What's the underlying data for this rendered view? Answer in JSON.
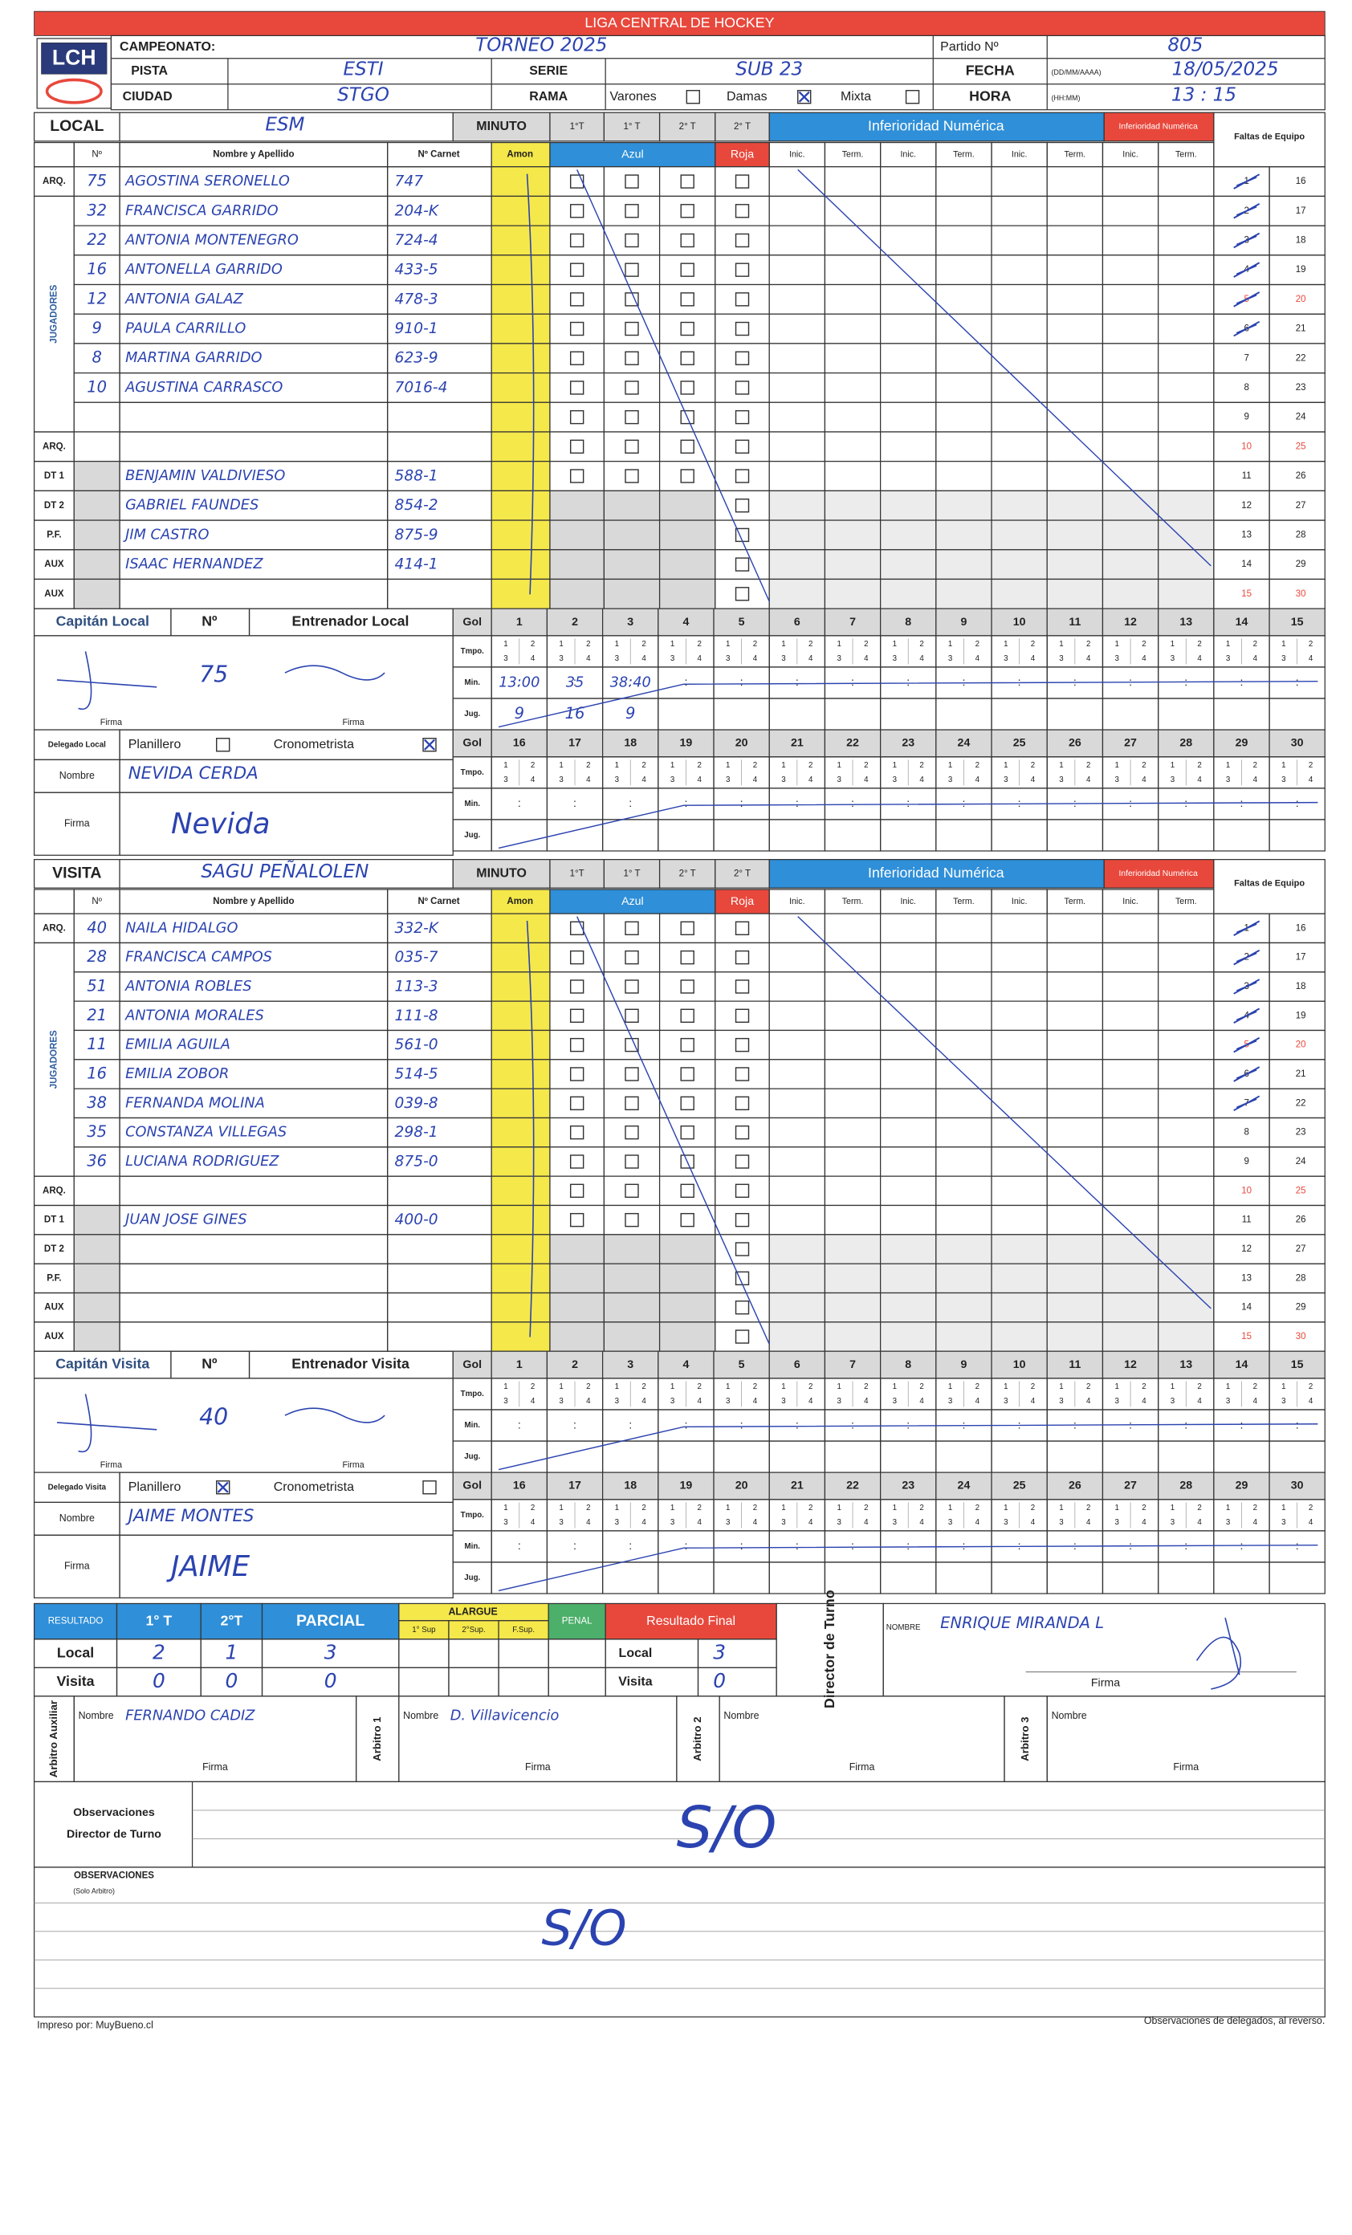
{
  "header": {
    "logo": "LCH",
    "title": "LIGA CENTRAL DE HOCKEY"
  },
  "match": {
    "campeonato_label": "CAMPEONATO:",
    "campeonato": "TORNEO 2025",
    "partido_label": "Partido Nº",
    "partido": "805",
    "pista_label": "PISTA",
    "pista": "ESTI",
    "serie_label": "SERIE",
    "serie": "SUB 23",
    "fecha_label": "FECHA",
    "fecha_format": "(DD/MM/AAAA)",
    "fecha": "18/05/2025",
    "ciudad_label": "CIUDAD",
    "ciudad": "STGO",
    "rama_label": "RAMA",
    "rama_options": [
      "Varones",
      "Damas",
      "Mixta"
    ],
    "rama_selected": "Damas",
    "hora_label": "HORA",
    "hora_format": "(HH:MM)",
    "hora": "13 : 15"
  },
  "labels": {
    "minuto": "MINUTO",
    "periods": [
      "1°T",
      "1° T",
      "2° T",
      "2° T"
    ],
    "no": "Nº",
    "nombre": "Nombre y Apellido",
    "carnet": "Nº Carnet",
    "amon": "Amon",
    "azul": "Azul",
    "roja": "Roja",
    "inferioridad": "Inferioridad Numérica",
    "inferioridad_small": "Inferioridad Numérica",
    "inic": "Inic.",
    "term": "Term.",
    "faltas": "Faltas de Equipo",
    "jugadores": "JUGADORES",
    "arq": "ARQ.",
    "dt1": "DT 1",
    "dt2": "DT 2",
    "pf": "P.F.",
    "aux": "AUX",
    "gol": "Gol",
    "tmpo": "Tmpo.",
    "min": "Min.",
    "jug": "Jug.",
    "quarters": [
      "1",
      "2",
      "3",
      "4"
    ],
    "colon": ":",
    "numbers": [
      1,
      2,
      3,
      4,
      5,
      6,
      7,
      8,
      9,
      10,
      11,
      12,
      13,
      14,
      15,
      16,
      17,
      18,
      19,
      20,
      21,
      22,
      23,
      24,
      25,
      26,
      27,
      28,
      29,
      30
    ],
    "firma": "Firma",
    "planillero": "Planillero",
    "cronometrista": "Cronometrista",
    "nombre_row": "Nombre"
  },
  "local": {
    "label": "LOCAL",
    "team": "ESM",
    "players": [
      {
        "number": "75",
        "name": "AGOSTINA SERONELLO",
        "carnet": "747"
      },
      {
        "number": "32",
        "name": "FRANCISCA GARRIDO",
        "carnet": "204-K"
      },
      {
        "number": "22",
        "name": "ANTONIA MONTENEGRO",
        "carnet": "724-4"
      },
      {
        "number": "16",
        "name": "ANTONELLA GARRIDO",
        "carnet": "433-5"
      },
      {
        "number": "12",
        "name": "ANTONIA GALAZ",
        "carnet": "478-3"
      },
      {
        "number": "9",
        "name": "PAULA CARRILLO",
        "carnet": "910-1"
      },
      {
        "number": "8",
        "name": "MARTINA GARRIDO",
        "carnet": "623-9"
      },
      {
        "number": "10",
        "name": "AGUSTINA CARRASCO",
        "carnet": "7016-4"
      }
    ],
    "staff": [
      {
        "role": "dt1",
        "name": "BENJAMIN VALDIVIESO",
        "carnet": "588-1"
      },
      {
        "role": "dt2",
        "name": "GABRIEL FAUNDES",
        "carnet": "854-2"
      },
      {
        "role": "pf",
        "name": "JIM CASTRO",
        "carnet": "875-9"
      },
      {
        "role": "aux",
        "name": "ISAAC HERNANDEZ",
        "carnet": "414-1"
      }
    ],
    "captain_label": "Capitán Local",
    "coach_label": "Entrenador Local",
    "captain_number": "75",
    "delegate_label": "Delegado Local",
    "delegate_role": "cronometrista",
    "delegate_name": "NEVIDA CERDA",
    "delegate_signature": "Nevida",
    "fouls_marked": 6,
    "goals": {
      "min": [
        "13:00",
        "35",
        "38:40"
      ],
      "jug": [
        "9",
        "16",
        "9"
      ]
    }
  },
  "visita": {
    "label": "VISITA",
    "team": "SAGU PEÑALOLEN",
    "players": [
      {
        "number": "40",
        "name": "NAILA HIDALGO",
        "carnet": "332-K"
      },
      {
        "number": "28",
        "name": "FRANCISCA CAMPOS",
        "carnet": "035-7"
      },
      {
        "number": "51",
        "name": "ANTONIA ROBLES",
        "carnet": "113-3"
      },
      {
        "number": "21",
        "name": "ANTONIA MORALES",
        "carnet": "111-8"
      },
      {
        "number": "11",
        "name": "EMILIA AGUILA",
        "carnet": "561-0"
      },
      {
        "number": "16",
        "name": "EMILIA ZOBOR",
        "carnet": "514-5"
      },
      {
        "number": "38",
        "name": "FERNANDA MOLINA",
        "carnet": "039-8"
      },
      {
        "number": "35",
        "name": "CONSTANZA VILLEGAS",
        "carnet": "298-1"
      },
      {
        "number": "36",
        "name": "LUCIANA RODRIGUEZ",
        "carnet": "875-0"
      }
    ],
    "staff": [
      {
        "role": "dt1",
        "name": "JUAN JOSE GINES",
        "carnet": "400-0"
      }
    ],
    "captain_label": "Capitán Visita",
    "coach_label": "Entrenador Visita",
    "captain_number": "40",
    "delegate_label": "Delegado Visita",
    "delegate_role": "planillero",
    "delegate_name": "JAIME MONTES",
    "delegate_signature": "JAIME",
    "fouls_marked": 7
  },
  "results": {
    "label": "RESULTADO",
    "cols": [
      "1° T",
      "2°T",
      "PARCIAL"
    ],
    "alargue": "ALARGUE",
    "alargue_cols": [
      "1° Sup",
      "2°Sup.",
      "F.Sup."
    ],
    "penal": "PENAL",
    "final": "Resultado Final",
    "rows": [
      "Local",
      "Visita"
    ],
    "local": [
      "2",
      "1",
      "3"
    ],
    "visita": [
      "0",
      "0",
      "0"
    ],
    "final_local": "3",
    "final_visita": "0"
  },
  "director": {
    "label": "Director de Turno",
    "nombre_label": "NOMBRE",
    "name": "ENRIQUE MIRANDA L"
  },
  "officials": [
    {
      "label": "Arbitro Auxiliar",
      "name": "FERNANDO CADIZ"
    },
    {
      "label": "Arbitro 1",
      "name": "D. Villavicencio"
    },
    {
      "label": "Arbitro 2"
    },
    {
      "label": "Arbitro 3"
    }
  ],
  "observations": {
    "director_label": [
      "Observaciones",
      "Director de Turno"
    ],
    "director": "S/O",
    "arbitro_label": "OBSERVACIONES",
    "arbitro_note": "(Solo Arbitro)",
    "arbitro": "S/O"
  },
  "footer": {
    "left": "Impreso por: MuyBueno.cl",
    "right": "Observaciones de delegados, al reverso."
  }
}
